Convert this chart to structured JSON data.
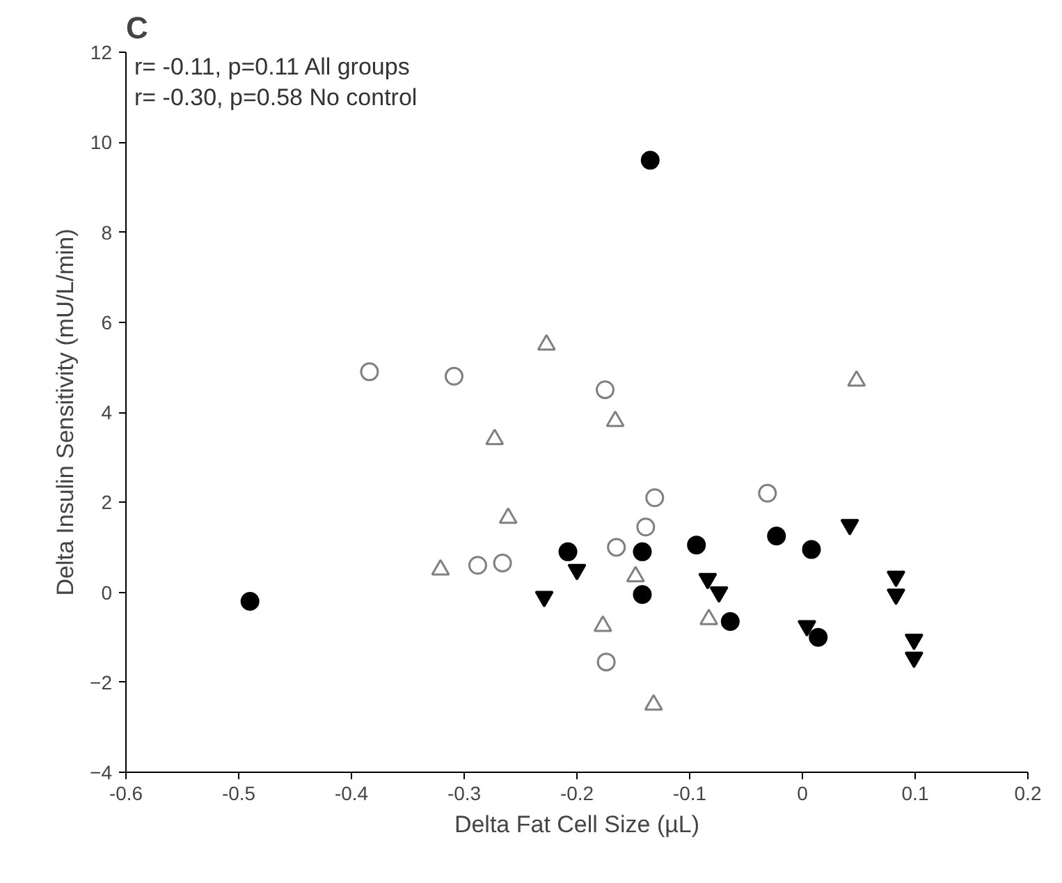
{
  "chart_data": {
    "type": "scatter",
    "title": "C",
    "xlabel": "Delta Fat Cell Size (µL)",
    "ylabel": "Delta Insulin Sensitivity (mU/L/min)",
    "annotations": [
      "r= -0.11, p=0.11   All groups",
      "r= -0.30, p=0.58 No control"
    ],
    "xlim": [
      -0.6,
      0.2
    ],
    "xticks": [
      -0.6,
      -0.5,
      -0.4,
      -0.3,
      -0.2,
      -0.1,
      0.0,
      0.1,
      0.2
    ],
    "ylim": [
      -4,
      12
    ],
    "yticks": [
      -4,
      -2,
      0,
      2,
      4,
      6,
      8,
      10,
      12
    ],
    "grid": false,
    "series": [
      {
        "color": "#000000",
        "marker": "circle",
        "x": [
          -0.49,
          -0.135,
          -0.208,
          -0.142,
          -0.142,
          -0.094,
          -0.064,
          -0.023,
          0.008,
          0.014
        ],
        "values": [
          -0.2,
          9.6,
          0.9,
          0.9,
          -0.05,
          1.05,
          -0.65,
          1.25,
          0.95,
          -1.0
        ]
      },
      {
        "color": "#000000",
        "marker": "triangle",
        "x": [
          -0.229,
          -0.2,
          -0.084,
          -0.074,
          0.004,
          0.042,
          0.083,
          0.083,
          0.099,
          0.099
        ],
        "values": [
          -0.1,
          0.5,
          0.3,
          0.0,
          -0.75,
          1.5,
          0.35,
          -0.05,
          -1.05,
          -1.45
        ]
      },
      {
        "color": "#808080",
        "marker": "circle",
        "x": [
          -0.384,
          -0.309,
          -0.288,
          -0.266,
          -0.175,
          -0.131,
          -0.139,
          -0.165,
          -0.174,
          -0.031
        ],
        "values": [
          4.9,
          4.8,
          0.6,
          0.65,
          4.5,
          2.1,
          1.45,
          1.0,
          -1.55,
          2.2
        ]
      },
      {
        "color": "#808080",
        "marker": "triangle",
        "x": [
          -0.227,
          -0.273,
          -0.261,
          -0.321,
          -0.166,
          0.048,
          -0.177,
          -0.132,
          -0.083,
          -0.148
        ],
        "values": [
          5.5,
          3.4,
          1.65,
          0.5,
          3.8,
          4.7,
          -0.75,
          -2.5,
          -0.6,
          0.35
        ]
      }
    ]
  }
}
